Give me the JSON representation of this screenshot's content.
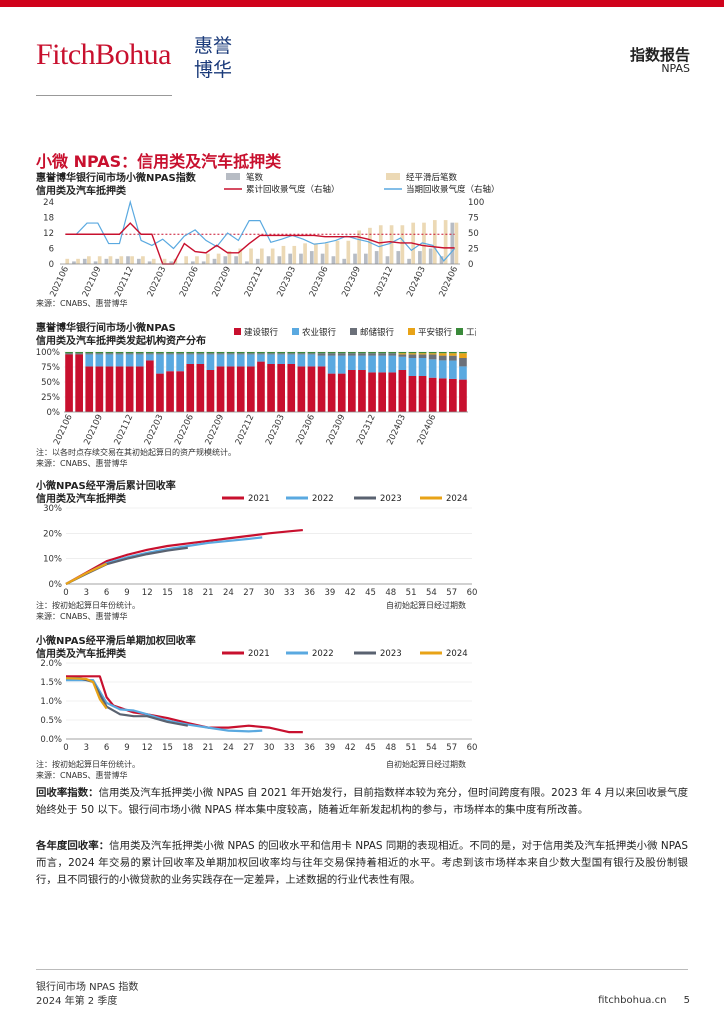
{
  "header": {
    "logo_en": "FitchBohua",
    "logo_cn_top": "惠誉",
    "logo_cn_bottom": "博华",
    "report_type": "指数报告",
    "report_sub": "NPAS"
  },
  "section_title": "小微 NPAS：信用类及汽车抵押类",
  "colors": {
    "brand_red": "#c8102e",
    "bar_grey": "#b7bcc4",
    "bar_beige": "#ecd9b5",
    "line_red": "#c8102e",
    "line_blue": "#5aa9e0",
    "dash_red": "#c8102e"
  },
  "chart1": {
    "title1": "惠誉博华银行间市场小微NPAS指数",
    "title2": "信用类及汽车抵押类",
    "legend": [
      "笔数",
      "经平滑后笔数",
      "累计回收景气度（右轴）",
      "当期回收景气度（右轴）"
    ],
    "source": "来源：CNABS、惠誉博华"
  },
  "chart2": {
    "title1": "惠誉博华银行间市场小微NPAS",
    "title2": "信用类及汽车抵押类发起机构资产分布",
    "legend": [
      "建设银行",
      "农业银行",
      "邮储银行",
      "平安银行",
      "工商银行"
    ],
    "note": "注：以各时点存续交易在其初始起算日的资产规模统计。",
    "source": "来源：CNABS、惠誉博华"
  },
  "chart3": {
    "title1": "小微NPAS经平滑后累计回收率",
    "title2": "信用类及汽车抵押类",
    "legend": [
      "2021",
      "2022",
      "2023",
      "2024"
    ],
    "note": "注：按初始起算日年份统计。",
    "source": "来源：CNABS、惠誉博华",
    "axis_note": "自初始起算日经过期数"
  },
  "chart4": {
    "title1": "小微NPAS经平滑后单期加权回收率",
    "title2": "信用类及汽车抵押类",
    "legend": [
      "2021",
      "2022",
      "2023",
      "2024"
    ],
    "note": "注：按初始起算日年份统计。",
    "source": "来源：CNABS、惠誉博华",
    "axis_note": "自初始起算日经过期数"
  },
  "chart_data": [
    {
      "type": "bar+line",
      "title": "惠誉博华银行间市场小微NPAS指数 信用类及汽车抵押类",
      "categories": [
        "202106",
        "202107",
        "202108",
        "202109",
        "202110",
        "202111",
        "202112",
        "202201",
        "202202",
        "202203",
        "202204",
        "202205",
        "202206",
        "202207",
        "202208",
        "202209",
        "202210",
        "202211",
        "202212",
        "202301",
        "202302",
        "202303",
        "202304",
        "202305",
        "202306",
        "202307",
        "202308",
        "202309",
        "202310",
        "202311",
        "202312",
        "202401",
        "202402",
        "202403",
        "202404",
        "202405",
        "202406"
      ],
      "tick_labels": [
        "202106",
        "202109",
        "202112",
        "202203",
        "202206",
        "202209",
        "202212",
        "202303",
        "202306",
        "202309",
        "202312",
        "202403",
        "202406"
      ],
      "ylim_left": [
        0,
        24
      ],
      "yticks_left": [
        "0",
        "6",
        "12",
        "18",
        "24"
      ],
      "ylim_right": [
        0,
        100
      ],
      "yticks_right": [
        "0",
        "25",
        "50",
        "75",
        "100"
      ],
      "series": [
        {
          "name": "笔数",
          "axis": "left",
          "type": "bar",
          "values": [
            0,
            1,
            2,
            1,
            2,
            2,
            3,
            2,
            1,
            0,
            1,
            0,
            1,
            1,
            2,
            3,
            3,
            1,
            2,
            3,
            3,
            4,
            4,
            5,
            4,
            3,
            2,
            4,
            4,
            5,
            3,
            5,
            2,
            5,
            6,
            3,
            16
          ]
        },
        {
          "name": "经平滑后笔数",
          "axis": "left",
          "type": "bar",
          "values": [
            2,
            2,
            3,
            3,
            3,
            3,
            3,
            3,
            2,
            2,
            2,
            3,
            3,
            4,
            4,
            5,
            6,
            6,
            6,
            6,
            7,
            7,
            8,
            8,
            8,
            9,
            9,
            13,
            14,
            15,
            15,
            15,
            16,
            16,
            17,
            17,
            16
          ]
        },
        {
          "name": "累计回收景气度（右轴）",
          "axis": "right",
          "type": "line",
          "values": [
            48,
            48,
            48,
            48,
            48,
            48,
            66,
            48,
            48,
            0,
            0,
            33,
            20,
            18,
            30,
            18,
            18,
            33,
            46,
            46,
            46,
            46,
            46,
            46,
            44,
            44,
            44,
            44,
            40,
            34,
            36,
            34,
            34,
            30,
            28,
            26,
            26
          ]
        },
        {
          "name": "当期回收景气度（右轴）",
          "axis": "right",
          "type": "line",
          "values": [
            48,
            48,
            66,
            66,
            33,
            33,
            100,
            38,
            30,
            40,
            25,
            45,
            55,
            38,
            28,
            50,
            38,
            70,
            70,
            35,
            40,
            46,
            40,
            32,
            34,
            38,
            45,
            40,
            36,
            28,
            33,
            42,
            22,
            34,
            30,
            5,
            25
          ]
        },
        {
          "name": "",
          "axis": "right",
          "type": "dashed",
          "values": [
            48,
            48,
            48,
            48,
            48,
            48,
            48,
            48,
            48,
            48,
            48,
            48,
            48,
            48,
            48,
            48,
            48,
            48,
            48,
            48,
            48,
            48,
            48,
            48,
            48,
            48,
            48,
            48,
            48,
            48,
            48,
            48,
            48,
            48,
            48,
            48,
            48
          ]
        }
      ]
    },
    {
      "type": "bar",
      "stacked": true,
      "title": "惠誉博华银行间市场小微NPAS 信用类及汽车抵押类发起机构资产分布",
      "tick_labels": [
        "202106",
        "202109",
        "202112",
        "202203",
        "202206",
        "202209",
        "202212",
        "202303",
        "202306",
        "202309",
        "202312",
        "202403",
        "202406"
      ],
      "ylim": [
        0,
        100
      ],
      "yticks": [
        "0%",
        "25%",
        "50%",
        "75%",
        "100%"
      ],
      "series": [
        {
          "name": "建设银行",
          "values": [
            96,
            96,
            76,
            76,
            76,
            76,
            76,
            76,
            86,
            64,
            68,
            68,
            80,
            80,
            70,
            76,
            76,
            76,
            76,
            84,
            80,
            80,
            80,
            76,
            76,
            76,
            64,
            64,
            70,
            70,
            66,
            66,
            66,
            70,
            60,
            60,
            56,
            56,
            54,
            54
          ]
        },
        {
          "name": "农业银行",
          "values": [
            0,
            0,
            20,
            20,
            20,
            20,
            20,
            20,
            10,
            32,
            28,
            28,
            16,
            16,
            26,
            20,
            20,
            20,
            20,
            12,
            16,
            16,
            16,
            20,
            20,
            18,
            30,
            30,
            24,
            24,
            28,
            28,
            28,
            22,
            30,
            30,
            30,
            30,
            30,
            22
          ]
        },
        {
          "name": "邮储银行",
          "values": [
            2,
            2,
            2,
            2,
            2,
            2,
            2,
            2,
            2,
            2,
            2,
            2,
            2,
            2,
            2,
            2,
            2,
            2,
            2,
            2,
            2,
            2,
            2,
            2,
            2,
            4,
            4,
            4,
            4,
            4,
            4,
            4,
            4,
            4,
            6,
            6,
            8,
            8,
            8,
            14
          ]
        },
        {
          "name": "平安银行",
          "values": [
            0,
            0,
            0,
            0,
            0,
            0,
            0,
            0,
            0,
            0,
            0,
            0,
            0,
            0,
            0,
            0,
            0,
            0,
            0,
            0,
            0,
            0,
            0,
            0,
            0,
            0,
            0,
            0,
            0,
            0,
            0,
            0,
            0,
            2,
            2,
            2,
            2,
            4,
            4,
            8
          ]
        },
        {
          "name": "工商银行",
          "values": [
            2,
            2,
            2,
            2,
            2,
            2,
            2,
            2,
            2,
            2,
            2,
            2,
            2,
            2,
            2,
            2,
            2,
            2,
            2,
            2,
            2,
            2,
            2,
            2,
            2,
            2,
            2,
            2,
            2,
            2,
            2,
            2,
            2,
            2,
            2,
            2,
            2,
            2,
            2,
            2
          ]
        }
      ]
    },
    {
      "type": "line",
      "title": "小微NPAS经平滑后累计回收率 信用类及汽车抵押类",
      "xlim": [
        0,
        60
      ],
      "xticks": [
        "0",
        "3",
        "6",
        "9",
        "12",
        "15",
        "18",
        "21",
        "24",
        "27",
        "30",
        "33",
        "36",
        "39",
        "42",
        "45",
        "48",
        "51",
        "54",
        "57",
        "60"
      ],
      "ylim": [
        0,
        30
      ],
      "yticks": [
        "0%",
        "10%",
        "20%",
        "30%"
      ],
      "series": [
        {
          "name": "2021",
          "x": [
            0,
            3,
            6,
            9,
            12,
            15,
            18,
            21,
            24,
            27,
            30,
            33,
            35
          ],
          "y": [
            0,
            4.5,
            9,
            11.5,
            13.5,
            15,
            16,
            17,
            18,
            19,
            20,
            20.8,
            21.3
          ]
        },
        {
          "name": "2022",
          "x": [
            0,
            3,
            6,
            9,
            12,
            15,
            18,
            21,
            24,
            27,
            29
          ],
          "y": [
            0,
            4.2,
            8.2,
            10.5,
            12.3,
            13.8,
            15,
            16.2,
            17,
            17.8,
            18.4
          ]
        },
        {
          "name": "2023",
          "x": [
            0,
            3,
            6,
            9,
            12,
            15,
            18
          ],
          "y": [
            0,
            4,
            7.8,
            10,
            11.8,
            13.2,
            14.3
          ]
        },
        {
          "name": "2024",
          "x": [
            0,
            3,
            6
          ],
          "y": [
            0,
            4.3,
            8
          ]
        }
      ]
    },
    {
      "type": "line",
      "title": "小微NPAS经平滑后单期加权回收率 信用类及汽车抵押类",
      "xlim": [
        0,
        60
      ],
      "xticks": [
        "0",
        "3",
        "6",
        "9",
        "12",
        "15",
        "18",
        "21",
        "24",
        "27",
        "30",
        "33",
        "36",
        "39",
        "42",
        "45",
        "48",
        "51",
        "54",
        "57",
        "60"
      ],
      "ylim": [
        0,
        2.0
      ],
      "yticks": [
        "0.0%",
        "0.5%",
        "1.0%",
        "1.5%",
        "2.0%"
      ],
      "series": [
        {
          "name": "2021",
          "x": [
            0,
            2,
            5,
            6,
            7,
            8,
            10,
            12,
            15,
            18,
            21,
            24,
            27,
            30,
            33,
            35
          ],
          "y": [
            1.65,
            1.65,
            1.65,
            1.1,
            0.88,
            0.82,
            0.7,
            0.65,
            0.55,
            0.42,
            0.3,
            0.3,
            0.35,
            0.3,
            0.18,
            0.18
          ]
        },
        {
          "name": "2022",
          "x": [
            0,
            2,
            4,
            6,
            8,
            10,
            12,
            15,
            18,
            21,
            24,
            27,
            29
          ],
          "y": [
            1.55,
            1.55,
            1.55,
            0.95,
            0.78,
            0.75,
            0.65,
            0.48,
            0.38,
            0.3,
            0.22,
            0.2,
            0.22
          ]
        },
        {
          "name": "2023",
          "x": [
            0,
            2,
            4,
            6,
            8,
            10,
            12,
            15,
            18
          ],
          "y": [
            1.6,
            1.6,
            1.5,
            0.85,
            0.65,
            0.6,
            0.6,
            0.45,
            0.35
          ]
        },
        {
          "name": "2024",
          "x": [
            0,
            3,
            4,
            5,
            6
          ],
          "y": [
            1.6,
            1.58,
            1.5,
            1.05,
            0.8
          ]
        }
      ]
    }
  ],
  "paragraphs": {
    "p1_label": "回收率指数：",
    "p1_text": "信用类及汽车抵押类小微 NPAS 自 2021 年开始发行，目前指数样本较为充分，但时间跨度有限。2023 年 4 月以来回收景气度始终处于 50 以下。银行间市场小微 NPAS 样本集中度较高，随着近年新发起机构的参与，市场样本的集中度有所改善。",
    "p2_label": "各年度回收率：",
    "p2_text": "信用类及汽车抵押类小微 NPAS 的回收水平和信用卡 NPAS 同期的表现相近。不同的是，对于信用类及汽车抵押类小微 NPAS 而言，2024 年交易的累计回收率及单期加权回收率均与往年交易保持着相近的水平。考虑到该市场样本来自少数大型国有银行及股份制银行，且不同银行的小微贷款的业务实践存在一定差异，上述数据的行业代表性有限。"
  },
  "footer": {
    "line1": "银行间市场 NPAS 指数",
    "line2": "2024 年第 2 季度",
    "site": "fitchbohua.cn",
    "page": "5"
  }
}
